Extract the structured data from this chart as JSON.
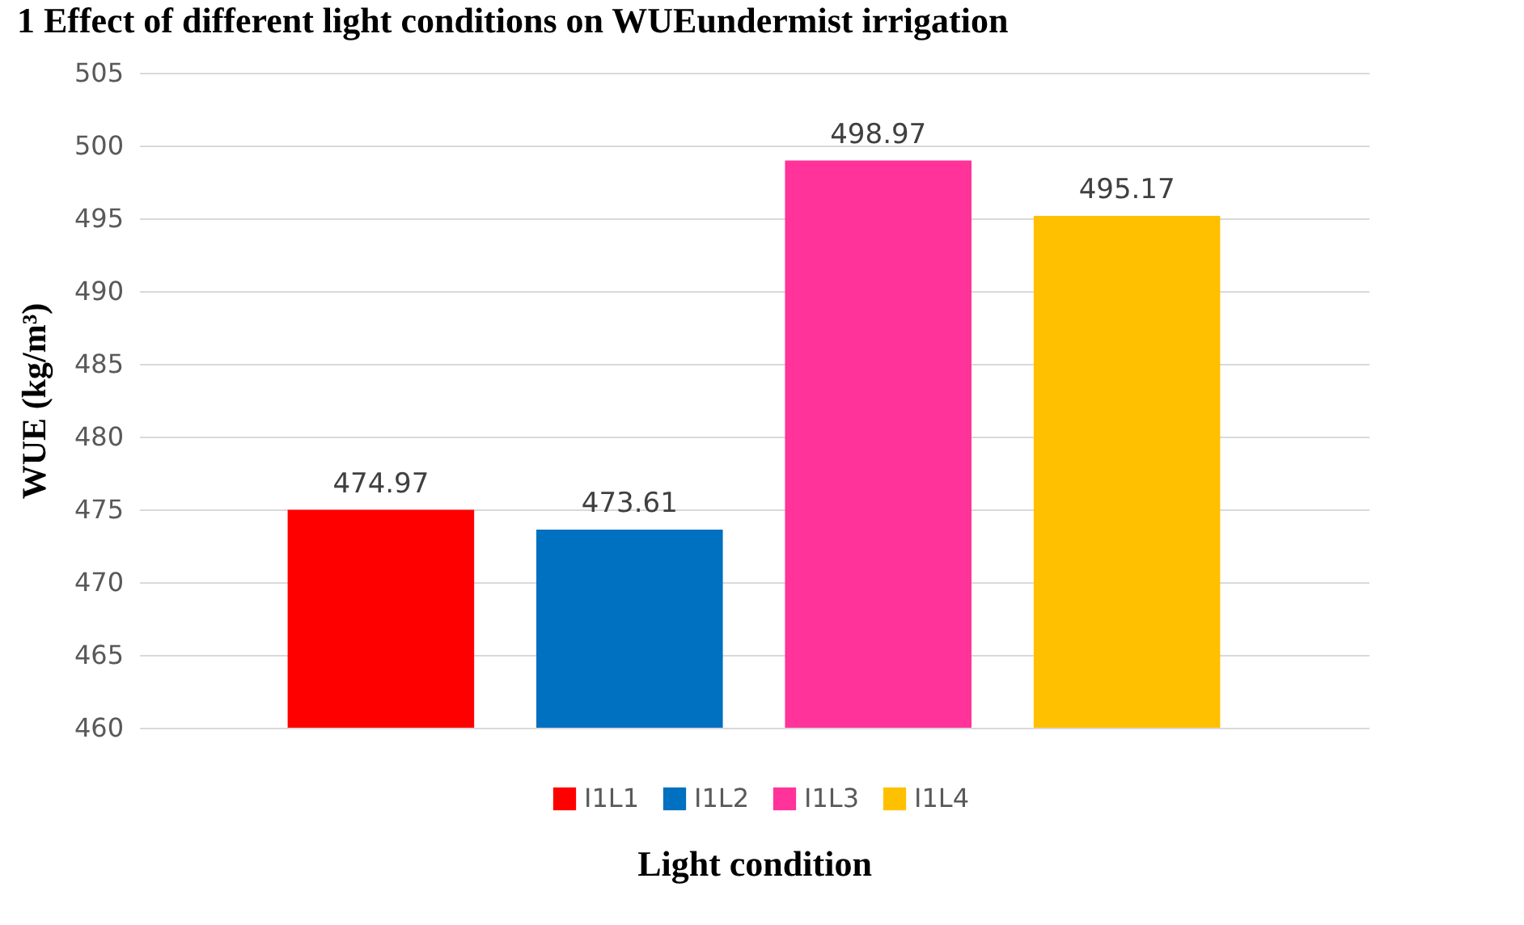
{
  "chart_data": {
    "type": "bar",
    "title": "1 Effect of different light conditions on WUEundermist irrigation",
    "xlabel": "Light condition",
    "ylabel": "WUE (kg/m³)",
    "categories": [
      null
    ],
    "series": [
      {
        "name": "I1L1",
        "color": "#ff0000",
        "values": [
          474.97
        ]
      },
      {
        "name": "I1L2",
        "color": "#0070c0",
        "values": [
          473.61
        ]
      },
      {
        "name": "I1L3",
        "color": "#ff3399",
        "values": [
          498.97
        ]
      },
      {
        "name": "I1L4",
        "color": "#ffc000",
        "values": [
          495.17
        ]
      }
    ],
    "ylim": [
      460,
      505
    ],
    "yticks": [
      460,
      465,
      470,
      475,
      480,
      485,
      490,
      495,
      500,
      505
    ],
    "grid": "y",
    "legend": "bottom",
    "data_labels": true
  }
}
